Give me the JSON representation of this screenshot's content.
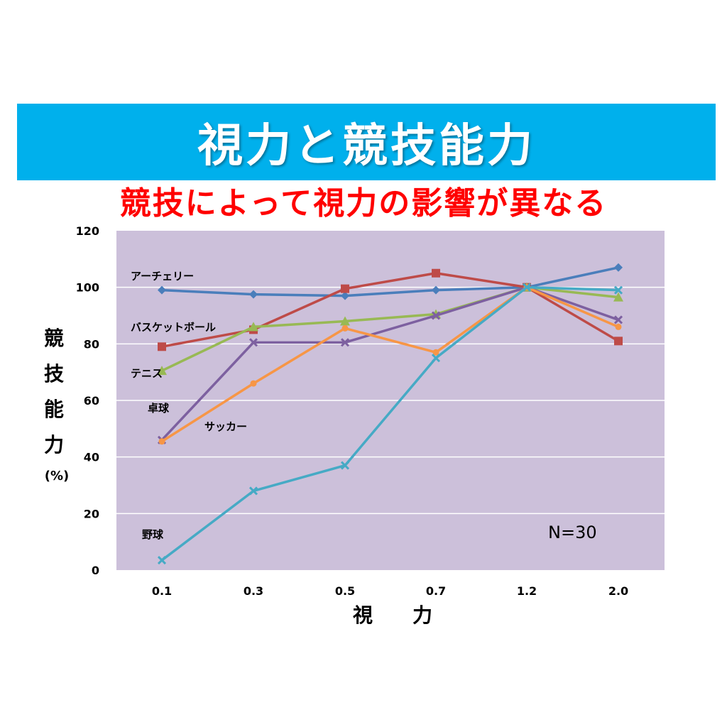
{
  "header": {
    "title": "視力と競技能力",
    "subtitle": "競技によって視力の影響が異なる"
  },
  "chart_data": {
    "type": "line",
    "categories": [
      "0.1",
      "0.3",
      "0.5",
      "0.7",
      "1.2",
      "2.0"
    ],
    "xlabel": "視　　力",
    "ylabel_chars": [
      "競",
      "技",
      "能",
      "力"
    ],
    "ylabel_unit": "(%)",
    "ylim": [
      0,
      120
    ],
    "yticks": [
      0,
      20,
      40,
      60,
      80,
      100,
      120
    ],
    "grid": true,
    "note": "N=30",
    "background_color": "#ccc0da",
    "series": [
      {
        "name": "アーチェリー",
        "color": "#4a7ebb",
        "marker": "diamond",
        "values": [
          99,
          97.5,
          97,
          99,
          100,
          107
        ]
      },
      {
        "name": "",
        "color": "#be4b48",
        "marker": "square",
        "values": [
          79,
          85,
          99.5,
          105,
          100,
          81
        ]
      },
      {
        "name": "バスケットボール",
        "color": "#98b954",
        "marker": "triangle",
        "values": [
          70.5,
          86,
          88,
          90.5,
          100,
          96.5
        ]
      },
      {
        "name": "卓球",
        "color": "#7d60a0",
        "marker": "x",
        "values": [
          46,
          80.5,
          80.5,
          90,
          100,
          88.5
        ]
      },
      {
        "name": "サッカー",
        "color": "#f79646",
        "marker": "circle",
        "values": [
          45.5,
          66,
          85.5,
          77,
          100,
          86
        ]
      },
      {
        "name": "野球",
        "color": "#46aac5",
        "marker": "x",
        "values": [
          3.5,
          28,
          37,
          75,
          100,
          99
        ]
      }
    ],
    "annotations": [
      {
        "text": "アーチェリー"
      },
      {
        "text": "バスケットボール"
      },
      {
        "text": "テニス"
      },
      {
        "text": "卓球"
      },
      {
        "text": "サッカー"
      },
      {
        "text": "野球"
      }
    ]
  }
}
